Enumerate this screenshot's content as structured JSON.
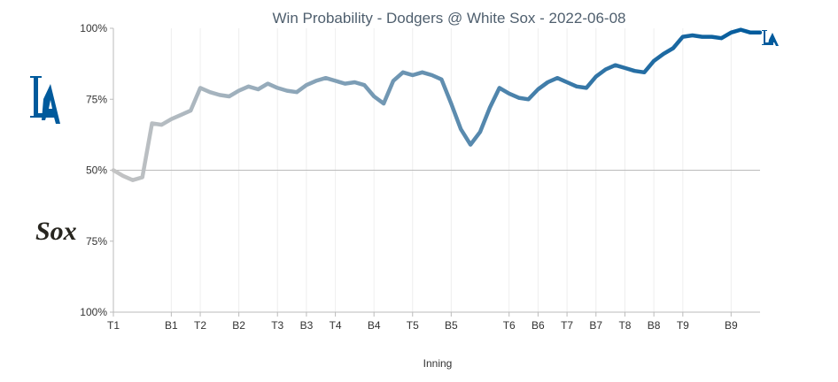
{
  "chart_data": {
    "type": "line",
    "title": "Win Probability - Dodgers @ White Sox - 2022-06-08",
    "xlabel": "Inning",
    "ylabel": "",
    "y_ticks": [
      "100%",
      "75%",
      "50%",
      "75%",
      "100%"
    ],
    "ylim": [
      -50,
      50
    ],
    "x_ticks": [
      {
        "label": "T1",
        "x": 0
      },
      {
        "label": "B1",
        "x": 6
      },
      {
        "label": "T2",
        "x": 9
      },
      {
        "label": "B2",
        "x": 13
      },
      {
        "label": "T3",
        "x": 17
      },
      {
        "label": "B3",
        "x": 20
      },
      {
        "label": "T4",
        "x": 23
      },
      {
        "label": "B4",
        "x": 27
      },
      {
        "label": "T5",
        "x": 31
      },
      {
        "label": "B5",
        "x": 35
      },
      {
        "label": "T6",
        "x": 41
      },
      {
        "label": "B6",
        "x": 44
      },
      {
        "label": "T7",
        "x": 47
      },
      {
        "label": "B7",
        "x": 50
      },
      {
        "label": "T8",
        "x": 53
      },
      {
        "label": "B8",
        "x": 56
      },
      {
        "label": "T9",
        "x": 59
      },
      {
        "label": "B9",
        "x": 64
      }
    ],
    "xlim": [
      0,
      67
    ],
    "series": [
      {
        "x": [
          0,
          1,
          2,
          3,
          4,
          5,
          6,
          7,
          8,
          9,
          10,
          11,
          12,
          13,
          14,
          15,
          16,
          17,
          18,
          19,
          20,
          21,
          22,
          23,
          24,
          25,
          26,
          27,
          28,
          29,
          30,
          31,
          32,
          33,
          34,
          35,
          36,
          37,
          38,
          39,
          40,
          41,
          42,
          43,
          44,
          45,
          46,
          47,
          48,
          49,
          50,
          51,
          52,
          53,
          54,
          55,
          56,
          57,
          58,
          59,
          60,
          61,
          62,
          63,
          64,
          65,
          66,
          67
        ],
        "values": [
          0,
          -2,
          -3.5,
          -2.5,
          16.5,
          16,
          18,
          19.5,
          21,
          29,
          27.5,
          26.5,
          26,
          28,
          29.5,
          28.5,
          30.5,
          29,
          28,
          27.5,
          30,
          31.5,
          32.5,
          31.5,
          30.5,
          31,
          30,
          26,
          23.5,
          31.5,
          34.5,
          33.5,
          34.5,
          33.5,
          32,
          23.5,
          14.5,
          9,
          13.5,
          22,
          29,
          27,
          25.5,
          25,
          28.5,
          31,
          32.5,
          31,
          29.5,
          29,
          33,
          35.5,
          37,
          36,
          35,
          34.5,
          38.5,
          41,
          43,
          47,
          47.5,
          47,
          47,
          46.5,
          48.5,
          49.5,
          48.5,
          48.5
        ]
      }
    ],
    "colors": {
      "dodgers": "#005a9c",
      "white_sox": "#27251f",
      "line_start": "#c4c4c4",
      "line_end": "#005a9c",
      "baseline": "#bbbbbb",
      "gridline": "#eeeeee",
      "axis": "#bbbbbb"
    },
    "team_logos": {
      "top": "LA",
      "bottom": "Sox"
    }
  }
}
